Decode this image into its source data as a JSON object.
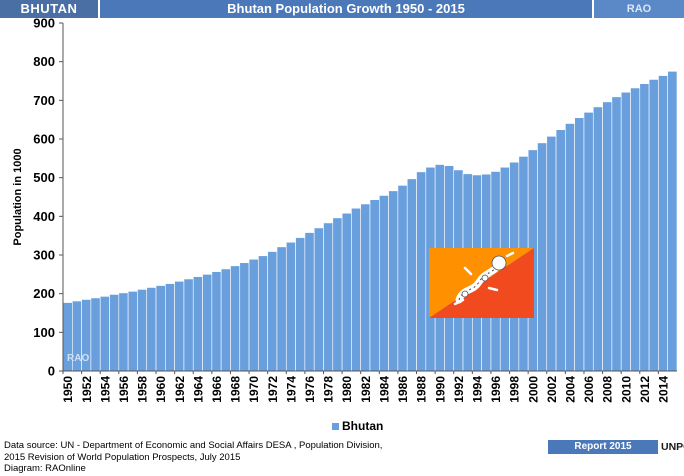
{
  "header": {
    "country": "BHUTAN",
    "title": "Bhutan Population Growth 1950 - 2015",
    "brand": "RAO"
  },
  "watermark": "RAO",
  "flag_icon": "bhutan-flag-icon",
  "colors": {
    "bar": "#6a9fde",
    "bar_edge": "#4f86cc",
    "header_dark": "#4a6fa5",
    "header_mid": "#4a78b8",
    "flag_yellow": "#ff9000",
    "flag_orange": "#f04a1e"
  },
  "chart_data": {
    "type": "bar",
    "title": "Bhutan Population Growth 1950 - 2015",
    "ylabel": "Population  in 1000",
    "xlabel": "",
    "ylim": [
      0,
      900
    ],
    "yticks": [
      0,
      100,
      200,
      300,
      400,
      500,
      600,
      700,
      800,
      900
    ],
    "grid": false,
    "legend_position": "bottom-center",
    "series": [
      {
        "name": "Bhutan",
        "values": [
          177,
          181,
          185,
          189,
          193,
          198,
          202,
          206,
          211,
          216,
          221,
          226,
          232,
          238,
          244,
          250,
          257,
          264,
          272,
          280,
          289,
          298,
          309,
          321,
          333,
          345,
          358,
          370,
          383,
          396,
          408,
          421,
          432,
          443,
          454,
          466,
          480,
          497,
          515,
          527,
          534,
          531,
          520,
          510,
          507,
          509,
          516,
          527,
          540,
          555,
          572,
          590,
          607,
          624,
          640,
          655,
          669,
          683,
          696,
          709,
          721,
          732,
          743,
          754,
          764,
          775
        ]
      }
    ],
    "categories": [
      "1950",
      "1951",
      "1952",
      "1953",
      "1954",
      "1955",
      "1956",
      "1957",
      "1958",
      "1959",
      "1960",
      "1961",
      "1962",
      "1963",
      "1964",
      "1965",
      "1966",
      "1967",
      "1968",
      "1969",
      "1970",
      "1971",
      "1972",
      "1973",
      "1974",
      "1975",
      "1976",
      "1977",
      "1978",
      "1979",
      "1980",
      "1981",
      "1982",
      "1983",
      "1984",
      "1985",
      "1986",
      "1987",
      "1988",
      "1989",
      "1990",
      "1991",
      "1992",
      "1993",
      "1994",
      "1995",
      "1996",
      "1997",
      "1998",
      "1999",
      "2000",
      "2001",
      "2002",
      "2003",
      "2004",
      "2005",
      "2006",
      "2007",
      "2008",
      "2009",
      "2010",
      "2011",
      "2012",
      "2013",
      "2014",
      "2015"
    ],
    "tick_labels": [
      "1950",
      "1952",
      "1954",
      "1956",
      "1958",
      "1960",
      "1962",
      "1964",
      "1966",
      "1968",
      "1970",
      "1972",
      "1974",
      "1976",
      "1978",
      "1980",
      "1982",
      "1984",
      "1986",
      "1988",
      "1990",
      "1992",
      "1994",
      "1996",
      "1998",
      "2000",
      "2002",
      "2004",
      "2006",
      "2008",
      "2010",
      "2012",
      "2014"
    ]
  },
  "footer": {
    "source_line1": "Data source: UN -  Department of Economic and Social Affairs DESA , Population Division,",
    "source_line2": "2015 Revision of World Population Prospects, July 2015",
    "source_line3": "Diagram: RAOnline",
    "report": "Report 2015",
    "org": "UNPOP"
  }
}
